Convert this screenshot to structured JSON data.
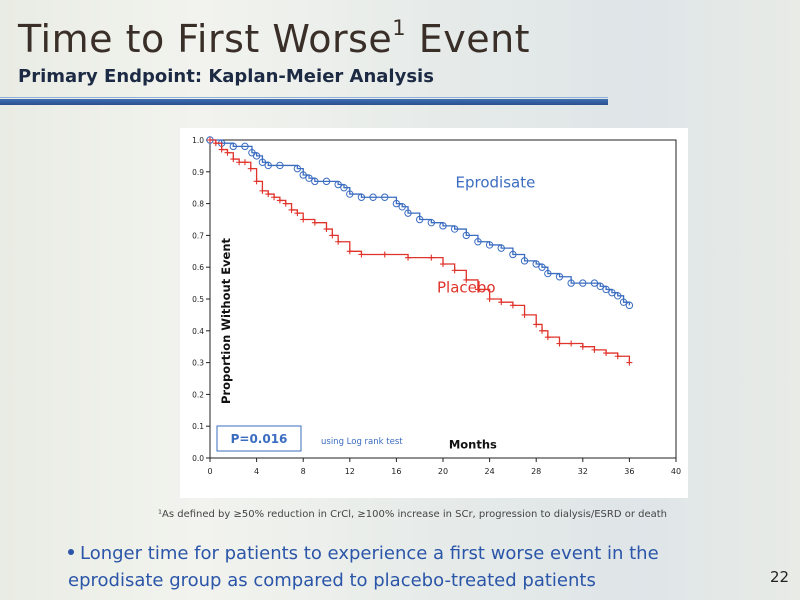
{
  "slide": {
    "title_main": "Time to First Worse",
    "title_sup": "1",
    "title_end": " Event",
    "subtitle": "Primary Endpoint: Kaplan-Meier Analysis",
    "footnote": "¹As defined by ≥50% reduction in CrCl, ≥100% increase in SCr, progression to dialysis/ESRD or death",
    "bullet": "Longer time for patients to experience a first worse event in the eprodisate group as compared to placebo-treated patients",
    "page_number": "22"
  },
  "colors": {
    "eprodisate": "#3a6cc0",
    "placebo": "#e0332a",
    "title": "#3a2f28",
    "accent": "#2a55a8"
  },
  "chart_data": {
    "type": "line",
    "title": "",
    "xlabel": "Months",
    "ylabel": "Proportion Without Event",
    "xlim": [
      0,
      40
    ],
    "ylim": [
      0,
      1.0
    ],
    "xticks": [
      0,
      4,
      8,
      12,
      16,
      20,
      24,
      28,
      32,
      36,
      40
    ],
    "yticks": [
      0.0,
      0.1,
      0.2,
      0.3,
      0.4,
      0.5,
      0.6,
      0.7,
      0.8,
      0.9,
      1.0
    ],
    "ytick_labels": [
      "0.0",
      "0.1",
      "0.2",
      "0.3",
      "0.4",
      "0.5",
      "0.6",
      "0.7",
      "0.8",
      "0.9",
      "1.0"
    ],
    "annotation_p": "P=0.016",
    "annotation_test": "using Log rank test",
    "series": [
      {
        "name": "Eprodisate",
        "step": true,
        "marker": "circle",
        "x": [
          0,
          1,
          2,
          3,
          3.6,
          4,
          4.5,
          5,
          6,
          7.5,
          8,
          8.5,
          9,
          10,
          11,
          11.5,
          12,
          13,
          14,
          15,
          16,
          16.5,
          17,
          18,
          19,
          20,
          21,
          22,
          23,
          24,
          25,
          26,
          27,
          28,
          28.5,
          29,
          30,
          31,
          32,
          33,
          33.5,
          34,
          34.5,
          35,
          35.5,
          36
        ],
        "y": [
          1.0,
          0.99,
          0.98,
          0.98,
          0.96,
          0.95,
          0.93,
          0.92,
          0.92,
          0.91,
          0.89,
          0.88,
          0.87,
          0.87,
          0.86,
          0.85,
          0.83,
          0.82,
          0.82,
          0.82,
          0.8,
          0.79,
          0.77,
          0.75,
          0.74,
          0.73,
          0.72,
          0.7,
          0.68,
          0.67,
          0.66,
          0.64,
          0.62,
          0.61,
          0.6,
          0.58,
          0.57,
          0.55,
          0.55,
          0.55,
          0.54,
          0.53,
          0.52,
          0.51,
          0.49,
          0.48
        ],
        "label_text": "Eprodisate"
      },
      {
        "name": "Placebo",
        "step": true,
        "marker": "plus",
        "x": [
          0,
          0.5,
          1,
          1.5,
          2,
          2.5,
          3,
          3.5,
          4,
          4.5,
          5,
          5.5,
          6,
          6.5,
          7,
          7.5,
          8,
          9,
          10,
          10.5,
          11,
          12,
          13,
          15,
          17,
          19,
          20,
          21,
          22,
          23,
          24,
          25,
          26,
          27,
          28,
          28.5,
          29,
          30,
          31,
          32,
          33,
          34,
          35,
          36
        ],
        "y": [
          1.0,
          0.99,
          0.97,
          0.96,
          0.94,
          0.93,
          0.93,
          0.91,
          0.87,
          0.84,
          0.83,
          0.82,
          0.81,
          0.8,
          0.78,
          0.77,
          0.75,
          0.74,
          0.72,
          0.7,
          0.68,
          0.65,
          0.64,
          0.64,
          0.63,
          0.63,
          0.61,
          0.59,
          0.56,
          0.53,
          0.5,
          0.49,
          0.48,
          0.45,
          0.42,
          0.4,
          0.38,
          0.36,
          0.36,
          0.35,
          0.34,
          0.33,
          0.32,
          0.3
        ],
        "label_text": "Placebo"
      }
    ]
  }
}
